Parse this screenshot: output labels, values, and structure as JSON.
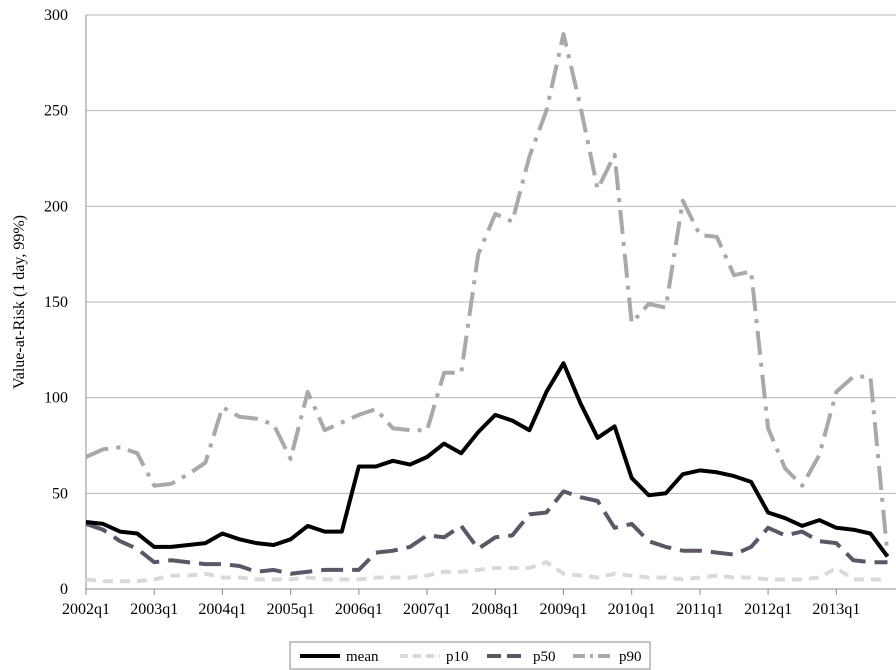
{
  "chart_data": {
    "type": "line",
    "title": "",
    "xlabel": "",
    "ylabel": "Value-at-Risk (1 day, 99%)",
    "ylim": [
      0,
      300
    ],
    "yticks": [
      0,
      50,
      100,
      150,
      200,
      250,
      300
    ],
    "grid": "horizontal",
    "legend_position": "bottom",
    "x_tick_labels": [
      "2002q1",
      "2003q1",
      "2004q1",
      "2005q1",
      "2006q1",
      "2007q1",
      "2008q1",
      "2009q1",
      "2010q1",
      "2011q1",
      "2012q1",
      "2013q1"
    ],
    "x": [
      "2002q1",
      "2002q2",
      "2002q3",
      "2002q4",
      "2003q1",
      "2003q2",
      "2003q3",
      "2003q4",
      "2004q1",
      "2004q2",
      "2004q3",
      "2004q4",
      "2005q1",
      "2005q2",
      "2005q3",
      "2005q4",
      "2006q1",
      "2006q2",
      "2006q3",
      "2006q4",
      "2007q1",
      "2007q2",
      "2007q3",
      "2007q4",
      "2008q1",
      "2008q2",
      "2008q3",
      "2008q4",
      "2009q1",
      "2009q2",
      "2009q3",
      "2009q4",
      "2010q1",
      "2010q2",
      "2010q3",
      "2010q4",
      "2011q1",
      "2011q2",
      "2011q3",
      "2011q4",
      "2012q1",
      "2012q2",
      "2012q3",
      "2012q4",
      "2013q1",
      "2013q2",
      "2013q3",
      "2013q4"
    ],
    "series": [
      {
        "name": "mean",
        "color": "#000000",
        "dash": "solid",
        "values": [
          35,
          34,
          30,
          29,
          22,
          22,
          23,
          24,
          29,
          26,
          24,
          23,
          26,
          33,
          30,
          30,
          64,
          64,
          67,
          65,
          69,
          76,
          71,
          82,
          91,
          88,
          83,
          103,
          118,
          97,
          79,
          85,
          58,
          49,
          50,
          60,
          62,
          61,
          59,
          56,
          40,
          37,
          33,
          36,
          32,
          31,
          29,
          17
        ]
      },
      {
        "name": "p10",
        "color": "#d9d9d9",
        "dash": "long",
        "values": [
          5,
          4,
          4,
          4,
          5,
          7,
          7,
          8,
          6,
          6,
          5,
          5,
          5,
          6,
          5,
          5,
          5,
          6,
          6,
          6,
          7,
          9,
          9,
          10,
          11,
          11,
          11,
          14,
          8,
          7,
          6,
          8,
          7,
          6,
          6,
          5,
          6,
          7,
          6,
          6,
          5,
          5,
          5,
          6,
          11,
          5,
          5,
          5
        ]
      },
      {
        "name": "p50",
        "color": "#5e5567",
        "dash": "dash",
        "values": [
          34,
          31,
          25,
          21,
          14,
          15,
          14,
          13,
          13,
          12,
          9,
          10,
          8,
          9,
          10,
          10,
          10,
          19,
          20,
          22,
          28,
          27,
          33,
          21,
          27,
          28,
          39,
          40,
          51,
          48,
          46,
          32,
          34,
          25,
          22,
          20,
          20,
          19,
          18,
          22,
          32,
          28,
          30,
          25,
          24,
          15,
          14,
          14
        ]
      },
      {
        "name": "p90",
        "color": "#a9a9a9",
        "dash": "dashdot",
        "values": [
          69,
          73,
          74,
          71,
          54,
          55,
          60,
          66,
          95,
          90,
          89,
          86,
          68,
          103,
          83,
          87,
          91,
          94,
          84,
          83,
          83,
          113,
          113,
          175,
          196,
          192,
          226,
          250,
          290,
          252,
          209,
          227,
          139,
          149,
          147,
          203,
          185,
          184,
          164,
          166,
          84,
          63,
          54,
          70,
          103,
          111,
          111,
          18
        ]
      }
    ]
  }
}
